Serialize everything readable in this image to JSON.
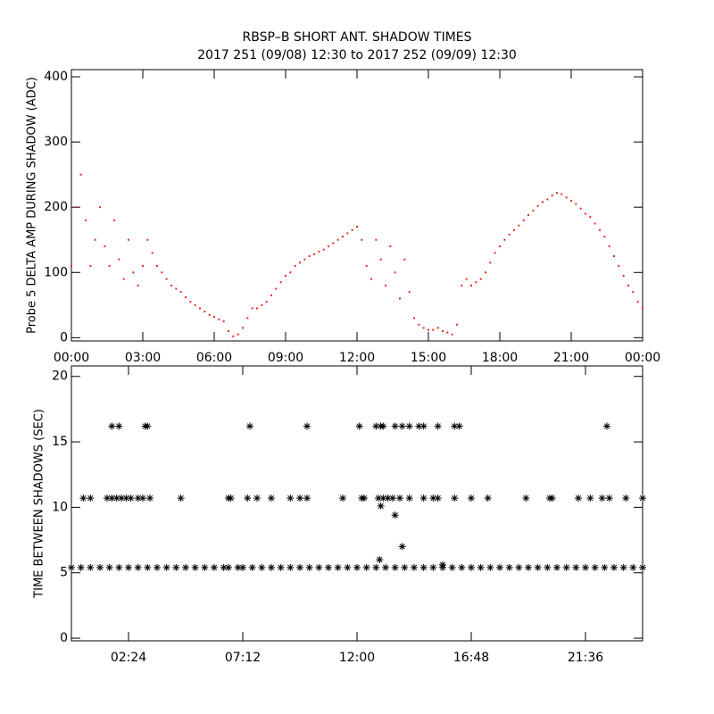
{
  "chart_data": [
    {
      "type": "scatter",
      "title": "RBSP–B SHORT ANT. SHADOW TIMES",
      "subtitle": "2017 251 (09/08) 12:30 to 2017 252 (09/09) 12:30",
      "y_label": "Probe 5 DELTA AMP DURING SHADOW (ADC)",
      "color": "#e8281e",
      "xlim": [
        0,
        24
      ],
      "ylim": [
        -5,
        411
      ],
      "xticks": [
        {
          "value": 0,
          "label": "00:00"
        },
        {
          "value": 3,
          "label": "03:00"
        },
        {
          "value": 6,
          "label": "06:00"
        },
        {
          "value": 9,
          "label": "09:00"
        },
        {
          "value": 12,
          "label": "12:00"
        },
        {
          "value": 15,
          "label": "15:00"
        },
        {
          "value": 18,
          "label": "18:00"
        },
        {
          "value": 21,
          "label": "21:00"
        },
        {
          "value": 24,
          "label": "00:00"
        }
      ],
      "yticks": [
        0,
        100,
        200,
        300,
        400
      ],
      "x": [
        0.0,
        0.2,
        0.4,
        0.6,
        0.8,
        1.0,
        1.2,
        1.4,
        1.6,
        1.8,
        2.0,
        2.2,
        2.4,
        2.6,
        2.8,
        3.0,
        3.2,
        3.4,
        3.6,
        3.8,
        4.0,
        4.2,
        4.4,
        4.6,
        4.8,
        5.0,
        5.2,
        5.4,
        5.6,
        5.8,
        6.0,
        6.2,
        6.4,
        6.6,
        6.8,
        7.0,
        7.2,
        7.4,
        7.6,
        7.8,
        8.0,
        8.2,
        8.4,
        8.6,
        8.8,
        9.0,
        9.2,
        9.4,
        9.6,
        9.8,
        10.0,
        10.2,
        10.4,
        10.6,
        10.8,
        11.0,
        11.2,
        11.4,
        11.6,
        11.8,
        12.0,
        12.2,
        12.4,
        12.6,
        12.8,
        13.0,
        13.2,
        13.4,
        13.6,
        13.8,
        14.0,
        14.2,
        14.4,
        14.6,
        14.8,
        15.0,
        15.2,
        15.4,
        15.6,
        15.8,
        16.0,
        16.2,
        16.4,
        16.6,
        16.8,
        17.0,
        17.2,
        17.4,
        17.6,
        17.8,
        18.0,
        18.2,
        18.4,
        18.6,
        18.8,
        19.0,
        19.2,
        19.4,
        19.6,
        19.8,
        20.0,
        20.2,
        20.4,
        20.6,
        20.8,
        21.0,
        21.2,
        21.4,
        21.6,
        21.8,
        22.0,
        22.2,
        22.4,
        22.6,
        22.8,
        23.0,
        23.2,
        23.4,
        23.6,
        23.8,
        24.0
      ],
      "values": [
        110,
        200,
        250,
        180,
        110,
        150,
        200,
        140,
        110,
        180,
        120,
        90,
        150,
        100,
        80,
        110,
        150,
        130,
        110,
        100,
        90,
        80,
        75,
        70,
        62,
        55,
        50,
        45,
        40,
        35,
        32,
        28,
        25,
        10,
        2,
        5,
        15,
        30,
        45,
        45,
        50,
        55,
        65,
        75,
        85,
        95,
        100,
        110,
        115,
        120,
        125,
        128,
        132,
        135,
        140,
        145,
        150,
        155,
        160,
        165,
        170,
        150,
        110,
        90,
        150,
        120,
        80,
        140,
        100,
        60,
        120,
        70,
        30,
        20,
        15,
        12,
        12,
        15,
        10,
        8,
        5,
        20,
        80,
        90,
        80,
        85,
        90,
        100,
        115,
        130,
        140,
        150,
        158,
        165,
        172,
        180,
        188,
        195,
        202,
        208,
        212,
        218,
        222,
        220,
        215,
        210,
        205,
        198,
        190,
        185,
        175,
        165,
        155,
        140,
        125,
        110,
        95,
        80,
        70,
        55,
        45
      ]
    },
    {
      "type": "scatter",
      "y_label": "TIME BETWEEN SHADOWS (SEC)",
      "color": "#000000",
      "xlim": [
        0,
        24
      ],
      "ylim": [
        -0.2,
        20.8
      ],
      "xticks": [
        {
          "value": 2.4,
          "label": "02:24"
        },
        {
          "value": 7.2,
          "label": "07:12"
        },
        {
          "value": 12,
          "label": "12:00"
        },
        {
          "value": 16.8,
          "label": "16:48"
        },
        {
          "value": 21.6,
          "label": "21:36"
        }
      ],
      "yticks": [
        0,
        5,
        10,
        15,
        20
      ],
      "x": [
        0.0,
        0.4,
        0.8,
        1.2,
        1.6,
        2.0,
        2.4,
        2.8,
        3.2,
        3.6,
        4.0,
        4.4,
        4.8,
        5.2,
        5.6,
        6.0,
        6.4,
        6.6,
        7.0,
        7.2,
        7.6,
        8.0,
        8.4,
        8.8,
        9.2,
        9.6,
        10.0,
        10.4,
        10.8,
        11.2,
        11.6,
        12.0,
        12.4,
        12.8,
        13.2,
        13.6,
        14.0,
        14.4,
        14.8,
        15.2,
        15.6,
        16.0,
        16.4,
        16.8,
        17.2,
        17.6,
        18.0,
        18.4,
        18.8,
        19.2,
        19.6,
        20.0,
        20.4,
        20.8,
        21.2,
        21.6,
        22.0,
        22.4,
        22.8,
        23.2,
        23.6,
        24.0,
        0.5,
        0.8,
        1.5,
        1.7,
        1.9,
        2.1,
        2.3,
        2.5,
        2.8,
        3.0,
        3.3,
        4.6,
        6.6,
        6.7,
        7.4,
        7.8,
        8.4,
        9.2,
        9.6,
        9.9,
        11.4,
        12.2,
        12.3,
        12.9,
        13.1,
        13.3,
        13.5,
        13.8,
        14.2,
        14.8,
        15.2,
        15.4,
        16.1,
        16.8,
        17.5,
        19.1,
        20.1,
        20.2,
        21.3,
        21.8,
        22.3,
        22.6,
        23.3,
        24.0,
        1.7,
        2.0,
        3.1,
        3.2,
        7.5,
        9.9,
        12.1,
        12.8,
        13.0,
        13.1,
        13.6,
        13.9,
        14.2,
        14.6,
        14.8,
        15.4,
        16.1,
        16.3,
        22.5,
        13.0,
        13.6,
        13.9,
        12.95,
        15.6
      ],
      "values": [
        5.4,
        5.4,
        5.4,
        5.4,
        5.4,
        5.4,
        5.4,
        5.4,
        5.4,
        5.4,
        5.4,
        5.4,
        5.4,
        5.4,
        5.4,
        5.4,
        5.4,
        5.4,
        5.4,
        5.4,
        5.4,
        5.4,
        5.4,
        5.4,
        5.4,
        5.4,
        5.4,
        5.4,
        5.4,
        5.4,
        5.4,
        5.4,
        5.4,
        5.4,
        5.4,
        5.4,
        5.4,
        5.4,
        5.4,
        5.4,
        5.4,
        5.4,
        5.4,
        5.4,
        5.4,
        5.4,
        5.4,
        5.4,
        5.4,
        5.4,
        5.4,
        5.4,
        5.4,
        5.4,
        5.4,
        5.4,
        5.4,
        5.4,
        5.4,
        5.4,
        5.4,
        5.4,
        10.7,
        10.7,
        10.7,
        10.7,
        10.7,
        10.7,
        10.7,
        10.7,
        10.7,
        10.7,
        10.7,
        10.7,
        10.7,
        10.7,
        10.7,
        10.7,
        10.7,
        10.7,
        10.7,
        10.7,
        10.7,
        10.7,
        10.7,
        10.7,
        10.7,
        10.7,
        10.7,
        10.7,
        10.7,
        10.7,
        10.7,
        10.7,
        10.7,
        10.7,
        10.7,
        10.7,
        10.7,
        10.7,
        10.7,
        10.7,
        10.7,
        10.7,
        10.7,
        10.7,
        16.2,
        16.2,
        16.2,
        16.2,
        16.2,
        16.2,
        16.2,
        16.2,
        16.2,
        16.2,
        16.2,
        16.2,
        16.2,
        16.2,
        16.2,
        16.2,
        16.2,
        16.2,
        16.2,
        10.1,
        9.4,
        7.0,
        6.0,
        5.6
      ]
    }
  ]
}
